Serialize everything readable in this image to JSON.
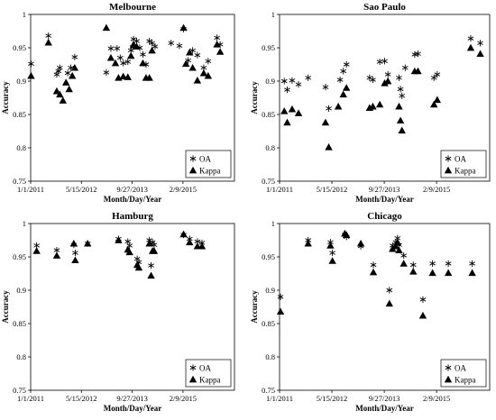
{
  "chart_data": [
    {
      "type": "scatter",
      "title": "Melbourne",
      "xlabel": "Month/Day/Year",
      "ylabel": "Accuracy",
      "x_ticks": [
        "1/1/2011",
        "5/15/2012",
        "9/27/2013",
        "2/9/2015"
      ],
      "xlim": [
        "2011-01-01",
        "2016-06-30"
      ],
      "ylim": [
        0.75,
        1
      ],
      "y_ticks": [
        "0.75",
        "0.8",
        "0.85",
        "0.9",
        "0.95",
        "1"
      ],
      "legend": "bottom-right",
      "series": [
        {
          "name": "OA",
          "marker": "asterisk",
          "x": [
            "2011-01-05",
            "2011-06-25",
            "2011-09-15",
            "2011-10-01",
            "2011-10-15",
            "2012-01-01",
            "2012-02-01",
            "2012-03-10",
            "2013-01-15",
            "2013-03-01",
            "2013-05-01",
            "2013-06-01",
            "2013-07-01",
            "2013-08-15",
            "2013-09-15",
            "2013-10-01",
            "2013-10-10",
            "2013-11-10",
            "2013-12-10",
            "2014-01-10",
            "2014-02-10",
            "2014-03-15",
            "2014-04-10",
            "2014-05-10",
            "2014-10-15",
            "2015-01-05",
            "2015-02-15",
            "2015-04-01",
            "2015-05-15",
            "2015-07-01",
            "2015-09-01",
            "2015-10-15",
            "2016-01-10",
            "2016-02-10"
          ],
          "y": [
            0.926,
            0.968,
            0.91,
            0.915,
            0.92,
            0.912,
            0.92,
            0.936,
            0.913,
            0.949,
            0.949,
            0.935,
            0.927,
            0.929,
            0.946,
            0.951,
            0.963,
            0.96,
            0.95,
            0.94,
            0.925,
            0.96,
            0.957,
            0.952,
            0.957,
            0.953,
            0.978,
            0.931,
            0.946,
            0.939,
            0.92,
            0.93,
            0.965,
            0.955
          ]
        },
        {
          "name": "Kappa",
          "marker": "triangle",
          "x": [
            "2011-01-05",
            "2011-06-25",
            "2011-09-15",
            "2011-10-15",
            "2011-11-15",
            "2011-12-15",
            "2012-01-15",
            "2012-02-15",
            "2012-03-10",
            "2013-01-15",
            "2013-03-01",
            "2013-04-15",
            "2013-05-15",
            "2013-07-01",
            "2013-08-15",
            "2013-09-15",
            "2013-10-10",
            "2013-11-10",
            "2014-01-10",
            "2014-02-10",
            "2014-03-15",
            "2014-04-10",
            "2015-02-15",
            "2015-03-10",
            "2015-04-15",
            "2015-05-15",
            "2015-07-01",
            "2015-09-01",
            "2015-10-15",
            "2016-01-10",
            "2016-02-10"
          ],
          "y": [
            0.908,
            0.958,
            0.885,
            0.88,
            0.871,
            0.898,
            0.888,
            0.908,
            0.92,
            0.98,
            0.935,
            0.927,
            0.905,
            0.907,
            0.906,
            0.938,
            0.955,
            0.952,
            0.927,
            0.905,
            0.905,
            0.946,
            0.98,
            0.926,
            0.943,
            0.92,
            0.901,
            0.912,
            0.908,
            0.955,
            0.944
          ]
        }
      ]
    },
    {
      "type": "scatter",
      "title": "Sao Paulo",
      "xlabel": "Month/Day/Year",
      "ylabel": "Accuracy",
      "x_ticks": [
        "1/1/2011",
        "5/15/2012",
        "9/27/2013",
        "2/9/2015"
      ],
      "xlim": [
        "2011-01-01",
        "2016-06-30"
      ],
      "ylim": [
        0.75,
        1
      ],
      "y_ticks": [
        "0.75",
        "0.8",
        "0.85",
        "0.9",
        "0.95",
        "1"
      ],
      "legend": "bottom-right",
      "series": [
        {
          "name": "OA",
          "marker": "asterisk",
          "x": [
            "2011-02-15",
            "2011-03-15",
            "2011-05-01",
            "2011-07-01",
            "2011-10-01",
            "2012-03-15",
            "2012-04-15",
            "2012-08-01",
            "2012-09-01",
            "2012-10-01",
            "2013-05-10",
            "2013-06-10",
            "2013-08-15",
            "2013-10-01",
            "2013-11-01",
            "2014-02-15",
            "2014-03-01",
            "2014-03-15",
            "2014-04-15",
            "2014-07-15",
            "2014-08-15",
            "2015-01-15",
            "2015-02-15",
            "2016-01-01",
            "2016-04-01"
          ],
          "y": [
            0.9,
            0.887,
            0.901,
            0.895,
            0.905,
            0.891,
            0.859,
            0.902,
            0.915,
            0.925,
            0.905,
            0.902,
            0.929,
            0.93,
            0.91,
            0.905,
            0.888,
            0.878,
            0.92,
            0.94,
            0.941,
            0.905,
            0.91,
            0.964,
            0.957
          ]
        },
        {
          "name": "Kappa",
          "marker": "triangle",
          "x": [
            "2011-02-15",
            "2011-03-15",
            "2011-05-01",
            "2011-07-01",
            "2012-03-15",
            "2012-04-15",
            "2012-07-15",
            "2012-09-01",
            "2012-10-01",
            "2013-05-10",
            "2013-06-10",
            "2013-08-15",
            "2013-10-01",
            "2013-11-01",
            "2014-02-15",
            "2014-03-01",
            "2014-03-15",
            "2014-07-15",
            "2014-08-15",
            "2015-01-15",
            "2015-02-15",
            "2016-01-01",
            "2016-04-01"
          ],
          "y": [
            0.855,
            0.838,
            0.858,
            0.852,
            0.838,
            0.801,
            0.862,
            0.88,
            0.89,
            0.86,
            0.862,
            0.865,
            0.897,
            0.9,
            0.862,
            0.841,
            0.826,
            0.915,
            0.915,
            0.865,
            0.872,
            0.95,
            0.941
          ]
        }
      ]
    },
    {
      "type": "scatter",
      "title": "Hamburg",
      "xlabel": "Month/Day/Year",
      "ylabel": "Accuracy",
      "x_ticks": [
        "1/1/2011",
        "5/15/2012",
        "9/27/2013",
        "2/9/2015"
      ],
      "xlim": [
        "2011-01-01",
        "2016-06-30"
      ],
      "ylim": [
        0.75,
        1
      ],
      "y_ticks": [
        "0.75",
        "0.8",
        "0.85",
        "0.9",
        "0.95",
        "1"
      ],
      "legend": "bottom-right",
      "series": [
        {
          "name": "OA",
          "marker": "asterisk",
          "x": [
            "2011-03-01",
            "2011-09-15",
            "2012-03-01",
            "2012-03-15",
            "2012-07-15",
            "2013-05-15",
            "2013-08-15",
            "2013-09-01",
            "2013-11-15",
            "2013-12-01",
            "2014-03-15",
            "2014-04-01",
            "2014-04-15",
            "2014-05-01",
            "2015-02-15",
            "2015-04-15",
            "2015-07-01",
            "2015-08-15"
          ],
          "y": [
            0.967,
            0.96,
            0.968,
            0.956,
            0.97,
            0.977,
            0.973,
            0.967,
            0.947,
            0.942,
            0.975,
            0.937,
            0.972,
            0.968,
            0.983,
            0.977,
            0.973,
            0.971
          ]
        },
        {
          "name": "Kappa",
          "marker": "triangle",
          "x": [
            "2011-03-01",
            "2011-09-15",
            "2012-03-01",
            "2012-03-15",
            "2012-07-15",
            "2013-05-15",
            "2013-08-15",
            "2013-09-01",
            "2013-11-15",
            "2013-12-01",
            "2014-03-15",
            "2014-04-01",
            "2014-04-15",
            "2014-05-01",
            "2015-02-15",
            "2015-04-15",
            "2015-07-01",
            "2015-08-15"
          ],
          "y": [
            0.959,
            0.952,
            0.97,
            0.945,
            0.97,
            0.975,
            0.961,
            0.957,
            0.938,
            0.934,
            0.97,
            0.922,
            0.959,
            0.959,
            0.984,
            0.972,
            0.966,
            0.966
          ]
        }
      ]
    },
    {
      "type": "scatter",
      "title": "Chicago",
      "xlabel": "Month/Day/Year",
      "ylabel": "Accuracy",
      "x_ticks": [
        "1/1/2011",
        "5/15/2012",
        "9/27/2013",
        "2/9/2015"
      ],
      "xlim": [
        "2011-01-01",
        "2016-06-30"
      ],
      "ylim": [
        0.75,
        1
      ],
      "y_ticks": [
        "0.75",
        "0.8",
        "0.85",
        "0.9",
        "0.95",
        "1"
      ],
      "legend": "bottom-right",
      "series": [
        {
          "name": "OA",
          "marker": "asterisk",
          "x": [
            "2011-01-10",
            "2011-10-01",
            "2012-05-01",
            "2012-05-20",
            "2012-09-15",
            "2012-10-01",
            "2013-02-15",
            "2013-06-15",
            "2013-11-15",
            "2013-12-15",
            "2014-01-15",
            "2014-02-01",
            "2014-02-15",
            "2014-04-01",
            "2014-07-01",
            "2014-10-01",
            "2015-01-01",
            "2015-06-01",
            "2016-01-15"
          ],
          "y": [
            0.89,
            0.975,
            0.972,
            0.956,
            0.983,
            0.98,
            0.966,
            0.938,
            0.9,
            0.967,
            0.972,
            0.978,
            0.968,
            0.952,
            0.938,
            0.886,
            0.94,
            0.94,
            0.94
          ]
        },
        {
          "name": "Kappa",
          "marker": "triangle",
          "x": [
            "2011-01-10",
            "2011-10-01",
            "2012-05-01",
            "2012-05-20",
            "2012-09-15",
            "2012-10-01",
            "2013-02-15",
            "2013-06-15",
            "2013-11-15",
            "2013-12-15",
            "2014-01-15",
            "2014-02-01",
            "2014-02-15",
            "2014-04-01",
            "2014-07-01",
            "2014-10-01",
            "2015-01-01",
            "2015-06-01",
            "2016-01-15"
          ],
          "y": [
            0.868,
            0.97,
            0.967,
            0.944,
            0.985,
            0.983,
            0.97,
            0.927,
            0.88,
            0.962,
            0.966,
            0.972,
            0.96,
            0.94,
            0.928,
            0.862,
            0.926,
            0.926,
            0.926
          ]
        }
      ]
    }
  ]
}
